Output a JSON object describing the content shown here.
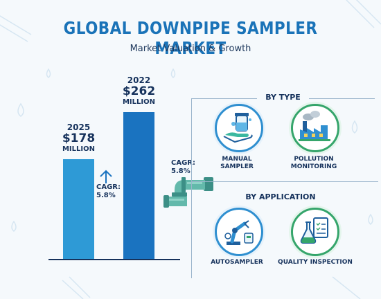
{
  "header": {
    "title": "GLOBAL DOWNPIPE SAMPLER MARKET",
    "subtitle": "Market Valuation & Growth"
  },
  "chart_data": {
    "type": "bar",
    "categories": [
      "2025",
      "2022"
    ],
    "values": [
      178,
      262
    ],
    "value_labels": [
      "$178",
      "$262"
    ],
    "unit_label": "MILLION",
    "ylim": [
      0,
      262
    ],
    "colors": [
      "#2e9ad6",
      "#1a73c0"
    ],
    "annotations": {
      "bar_cagr_label": "CAGR:",
      "bar_cagr_value": "5.8%",
      "pipe_cagr_label": "CAGR:",
      "pipe_cagr_value": "5.8%"
    }
  },
  "segments": {
    "by_type": {
      "heading": "BY TYPE",
      "items": [
        {
          "label_line1": "MANUAL",
          "label_line2": "SAMPLER",
          "icon": "hand-sampler-icon"
        },
        {
          "label_line1": "POLLUTION",
          "label_line2": "MONITORING",
          "icon": "factory-icon"
        }
      ]
    },
    "by_application": {
      "heading": "BY APPLICATION",
      "items": [
        {
          "label": "AUTOSAMPLER",
          "icon": "robot-arm-icon"
        },
        {
          "label": "QUALITY INSPECTION",
          "icon": "flask-checklist-icon"
        }
      ]
    }
  },
  "palette": {
    "accent": "#1a73b8",
    "green": "#35a56b",
    "dark": "#16325c",
    "pipe": "#5fb3a6"
  }
}
